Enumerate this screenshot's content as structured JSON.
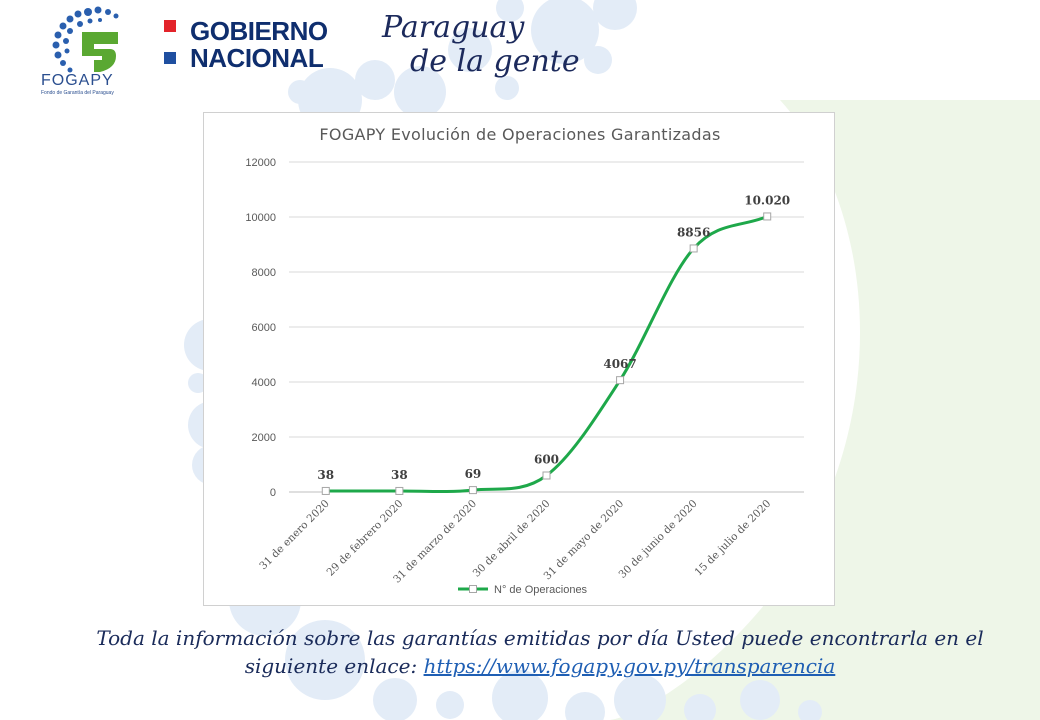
{
  "branding": {
    "fogapy_name": "FOGAPY",
    "fogapy_subtitle": "Fondo de Garantía del Paraguay",
    "gov_line1": "GOBIERNO",
    "gov_line2": "NACIONAL",
    "slogan_line1": "Paraguay",
    "slogan_line2": "de la gente",
    "colors": {
      "green": "#5aa832",
      "blue": "#1f4fa0",
      "red": "#e3232a"
    }
  },
  "chart_data": {
    "type": "line",
    "title": "FOGAPY Evolución de Operaciones Garantizadas",
    "categories": [
      "31 de enero 2020",
      "29 de febrero 2020",
      "31 de marzo de 2020",
      "30 de abril de 2020",
      "31 de mayo de 2020",
      "30 de junio de 2020",
      "15 de julio de 2020"
    ],
    "series": [
      {
        "name": "N° de Operaciones",
        "values": [
          38,
          38,
          69,
          600,
          4067,
          8856,
          10020
        ],
        "labels": [
          "38",
          "38",
          "69",
          "600",
          "4067",
          "8856",
          "10.020"
        ],
        "color": "#1ea84a"
      }
    ],
    "ylim": [
      0,
      12000
    ],
    "yticks": [
      "0",
      "2000",
      "4000",
      "6000",
      "8000",
      "10000",
      "12000"
    ],
    "grid": true,
    "legend": "bottom",
    "smooth": true
  },
  "footer": {
    "text": "Toda la información sobre las garantías emitidas por día Usted puede encontrarla en el siguiente enlace: ",
    "link_text": "https://www.fogapy.gov.py/transparencia"
  }
}
